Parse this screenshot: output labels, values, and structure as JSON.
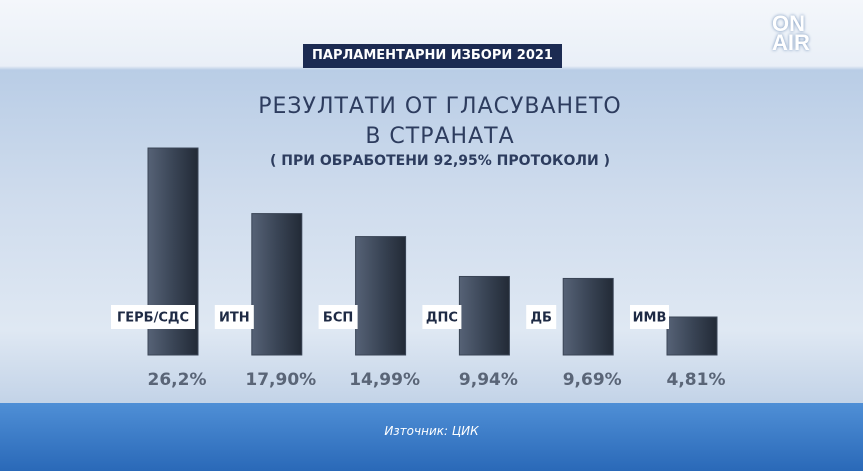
{
  "logo": [
    "ON",
    "AIR"
  ],
  "banner": "ПАРЛАМЕНТАРНИ ИЗБОРИ 2021",
  "source": "Източник: ЦИК",
  "chart_data": {
    "type": "bar",
    "title": "РЕЗУЛТАТИ ОТ ГЛАСУВАНЕТО В СТРАНАТА",
    "subtitle": "( ПРИ ОБРАБОТЕНИ 92,95% ПРОТОКОЛИ )",
    "categories": [
      "ГЕРБ/СДС",
      "ИТН",
      "БСП",
      "ДПС",
      "ДБ",
      "ИМВ"
    ],
    "values": [
      26.2,
      17.9,
      14.99,
      9.94,
      9.69,
      4.81
    ],
    "value_labels": [
      "26,2%",
      "17,90%",
      "14,99%",
      "9,94%",
      "9,69%",
      "4,81%"
    ],
    "color": "#3a4556",
    "ylim": [
      0,
      30
    ]
  }
}
